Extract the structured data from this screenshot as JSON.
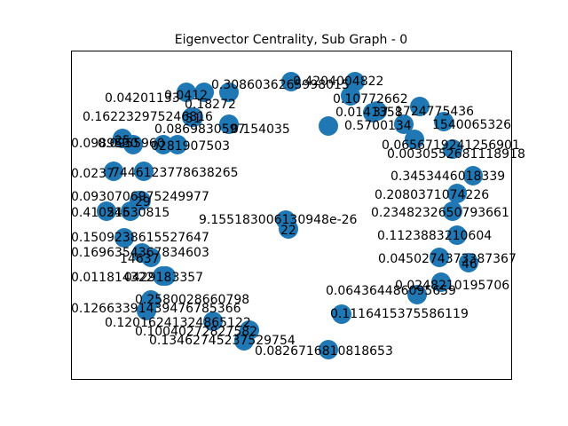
{
  "title": "Eigenvector Centrality, Sub Graph - 0",
  "node_color": "#1f77b4",
  "nodes": [
    {
      "id": "n-a",
      "name": "",
      "value": "0.3086036265998015"
    },
    {
      "id": "n-b",
      "name": "",
      "value": "0.4204004822"
    },
    {
      "id": "n-c",
      "name": "",
      "value": "0.04201133"
    },
    {
      "id": "n-d",
      "name": "",
      "value": "0.0412"
    },
    {
      "id": "n-e",
      "name": "",
      "value": "0.18272"
    },
    {
      "id": "n-f",
      "name": "",
      "value": "0.10772662"
    },
    {
      "id": "n-g",
      "name": "",
      "value": "0.162232975246816"
    },
    {
      "id": "n-h",
      "name": "51",
      "value": ""
    },
    {
      "id": "n-i",
      "name": "",
      "value": "0.0869830597"
    },
    {
      "id": "n-j",
      "name": "",
      "value": "0.154035"
    },
    {
      "id": "n-k",
      "name": "",
      "value": "0.0141358"
    },
    {
      "id": "n-l",
      "name": "",
      "value": "1724775436"
    },
    {
      "id": "n-m",
      "name": "37",
      "value": ""
    },
    {
      "id": "n-n",
      "name": "",
      "value": "0.5700134"
    },
    {
      "id": "n-o",
      "name": "",
      "value": "1540065326"
    },
    {
      "id": "n-p",
      "name": "25",
      "value": ""
    },
    {
      "id": "n-q",
      "name": "",
      "value": "0.0989530"
    },
    {
      "id": "n-r",
      "name": "",
      "value": "0.0955960"
    },
    {
      "id": "n-s",
      "name": "",
      "value": "0281907503"
    },
    {
      "id": "n-t",
      "name": "",
      "value": "0.0656719241256901"
    },
    {
      "id": "n-u",
      "name": "",
      "value": "0.0030552681118918"
    },
    {
      "id": "n-v",
      "name": "",
      "value": "0.0237"
    },
    {
      "id": "n-w",
      "name": "",
      "value": "7446123778638265"
    },
    {
      "id": "n-x",
      "name": "",
      "value": "0.3453446018339"
    },
    {
      "id": "n-y",
      "name": "",
      "value": "0.0930706975249977"
    },
    {
      "id": "n-z",
      "name": "29",
      "value": ""
    },
    {
      "id": "n-aa",
      "name": "",
      "value": "0.2080371074226"
    },
    {
      "id": "n-ab",
      "name": "",
      "value": "0.410515"
    },
    {
      "id": "n-ac",
      "name": "",
      "value": "24630815"
    },
    {
      "id": "n-ad",
      "name": "",
      "value": "0.2348232650793661"
    },
    {
      "id": "n-ae",
      "name": "",
      "value": "9.155183006130948e-26"
    },
    {
      "id": "n-af",
      "name": "22",
      "value": ""
    },
    {
      "id": "n-ag",
      "name": "",
      "value": "0.1509238615527647"
    },
    {
      "id": "n-ah",
      "name": "",
      "value": "0.1123883210604"
    },
    {
      "id": "n-ai",
      "name": "",
      "value": "0.1696354367834603"
    },
    {
      "id": "n-aj",
      "name": "",
      "value": "14637"
    },
    {
      "id": "n-ak",
      "name": "",
      "value": "0.0450274373387367"
    },
    {
      "id": "n-al",
      "name": "46",
      "value": ""
    },
    {
      "id": "n-am",
      "name": "",
      "value": "0.011814322"
    },
    {
      "id": "n-an",
      "name": "",
      "value": "0429183357"
    },
    {
      "id": "n-ao",
      "name": "",
      "value": "0.0248210195706"
    },
    {
      "id": "n-ap",
      "name": "",
      "value": "0.064364486095659"
    },
    {
      "id": "n-aq",
      "name": "",
      "value": "0.2580028660798"
    },
    {
      "id": "n-ar",
      "name": "",
      "value": "0.12663391439476785366"
    },
    {
      "id": "n-as",
      "name": "",
      "value": "0.1116415375586119"
    },
    {
      "id": "n-at",
      "name": "",
      "value": "0.12016241324865122"
    },
    {
      "id": "n-au",
      "name": "",
      "value": "0.10040272827582"
    },
    {
      "id": "n-av",
      "name": "",
      "value": "0.13462745237529754"
    },
    {
      "id": "n-aw",
      "name": "",
      "value": "0.0826716810818653"
    }
  ]
}
